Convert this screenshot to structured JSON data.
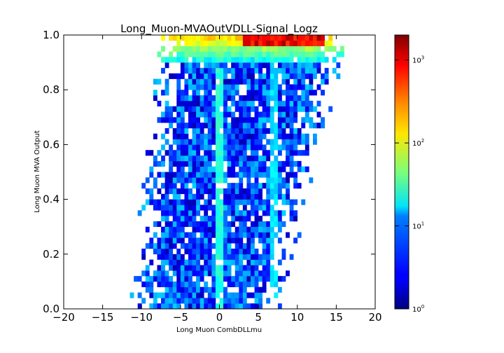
{
  "chart_data": {
    "type": "heatmap",
    "title": "Long_Muon-MVAOutVDLL-Signal_Logz",
    "xlabel": "Long Muon CombDLLmu",
    "ylabel": "Long Muon MVA Output",
    "xlim": [
      -20,
      20
    ],
    "ylim": [
      0.0,
      1.0
    ],
    "xticks": [
      "−20",
      "−15",
      "−10",
      "−5",
      "0",
      "5",
      "10",
      "15",
      "20"
    ],
    "yticks": [
      "0.0",
      "0.2",
      "0.4",
      "0.6",
      "0.8",
      "1.0"
    ],
    "colorbar": {
      "scale": "log",
      "range": [
        1,
        2000
      ],
      "colormap": "jet",
      "ticks": [
        {
          "base": "10",
          "exp": "0",
          "value": 1
        },
        {
          "base": "10",
          "exp": "1",
          "value": 10
        },
        {
          "base": "10",
          "exp": "2",
          "value": 100
        },
        {
          "base": "10",
          "exp": "3",
          "value": 1000
        }
      ]
    },
    "features": {
      "vertical_line_x0": "enhanced vertical band at CombDLLmu = 0 across MVA 0.0-0.88",
      "vertical_line_x7": "enhanced vertical band at CombDLLmu = 7",
      "peak": "maximum counts (~2000) at MVA output ~1.0, CombDLLmu 3-13"
    },
    "grid": false,
    "legend": "none"
  }
}
